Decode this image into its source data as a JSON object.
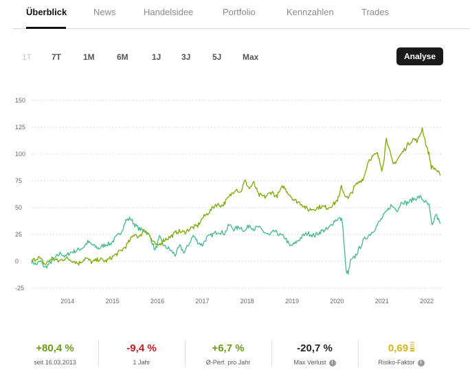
{
  "tabs": [
    {
      "label": "Überblick",
      "active": true
    },
    {
      "label": "News"
    },
    {
      "label": "Handelsidee"
    },
    {
      "label": "Portfolio"
    },
    {
      "label": "Kennzahlen"
    },
    {
      "label": "Trades"
    }
  ],
  "ranges": [
    {
      "label": "1T",
      "disabled": true
    },
    {
      "label": "7T"
    },
    {
      "label": "1M"
    },
    {
      "label": "6M"
    },
    {
      "label": "1J"
    },
    {
      "label": "3J"
    },
    {
      "label": "5J"
    },
    {
      "label": "Max"
    }
  ],
  "analyse_label": "Analyse",
  "colors": {
    "series_primary": "#7aa800",
    "series_secondary": "#3fb886",
    "positive": "#6a9a16",
    "negative": "#c41a1a",
    "neutral": "#222222",
    "risk": "#d9b418"
  },
  "chart_data": {
    "type": "line",
    "ylim": [
      -25,
      150
    ],
    "y_ticks": [
      "150",
      "125",
      "100",
      "75",
      "50",
      "25",
      "0",
      "-25"
    ],
    "x_ticks": [
      "2014",
      "2015",
      "2016",
      "2017",
      "2018",
      "2019",
      "2020",
      "2021",
      "2022"
    ],
    "grid": true,
    "series": [
      {
        "color": "#7aa800",
        "points": [
          [
            2013.2,
            0
          ],
          [
            2013.35,
            4
          ],
          [
            2013.5,
            -3
          ],
          [
            2013.65,
            3
          ],
          [
            2013.8,
            0
          ],
          [
            2013.95,
            3
          ],
          [
            2014.1,
            1
          ],
          [
            2014.25,
            -2
          ],
          [
            2014.4,
            3
          ],
          [
            2014.55,
            -1
          ],
          [
            2014.7,
            2
          ],
          [
            2014.85,
            0
          ],
          [
            2015.0,
            4
          ],
          [
            2015.1,
            7
          ],
          [
            2015.2,
            10
          ],
          [
            2015.3,
            14
          ],
          [
            2015.4,
            20
          ],
          [
            2015.5,
            26
          ],
          [
            2015.6,
            22
          ],
          [
            2015.7,
            30
          ],
          [
            2015.8,
            26
          ],
          [
            2015.9,
            18
          ],
          [
            2016.0,
            14
          ],
          [
            2016.15,
            20
          ],
          [
            2016.3,
            23
          ],
          [
            2016.45,
            28
          ],
          [
            2016.6,
            27
          ],
          [
            2016.75,
            31
          ],
          [
            2016.9,
            33
          ],
          [
            2017.0,
            40
          ],
          [
            2017.1,
            44
          ],
          [
            2017.2,
            48
          ],
          [
            2017.3,
            53
          ],
          [
            2017.45,
            52
          ],
          [
            2017.6,
            60
          ],
          [
            2017.75,
            68
          ],
          [
            2017.85,
            64
          ],
          [
            2017.95,
            75
          ],
          [
            2018.05,
            68
          ],
          [
            2018.15,
            73
          ],
          [
            2018.25,
            62
          ],
          [
            2018.4,
            60
          ],
          [
            2018.55,
            65
          ],
          [
            2018.65,
            60
          ],
          [
            2018.8,
            70
          ],
          [
            2018.95,
            62
          ],
          [
            2019.05,
            57
          ],
          [
            2019.2,
            54
          ],
          [
            2019.35,
            48
          ],
          [
            2019.5,
            49
          ],
          [
            2019.65,
            51
          ],
          [
            2019.8,
            50
          ],
          [
            2019.95,
            54
          ],
          [
            2020.05,
            60
          ],
          [
            2020.1,
            70
          ],
          [
            2020.15,
            64
          ],
          [
            2020.25,
            58
          ],
          [
            2020.4,
            70
          ],
          [
            2020.5,
            74
          ],
          [
            2020.6,
            78
          ],
          [
            2020.7,
            94
          ],
          [
            2020.8,
            98
          ],
          [
            2020.9,
            100
          ],
          [
            2021.0,
            86
          ],
          [
            2021.05,
            96
          ],
          [
            2021.1,
            116
          ],
          [
            2021.15,
            106
          ],
          [
            2021.25,
            90
          ],
          [
            2021.4,
            98
          ],
          [
            2021.5,
            104
          ],
          [
            2021.6,
            110
          ],
          [
            2021.7,
            114
          ],
          [
            2021.8,
            112
          ],
          [
            2021.9,
            124
          ],
          [
            2022.0,
            106
          ],
          [
            2022.05,
            100
          ],
          [
            2022.1,
            88
          ],
          [
            2022.2,
            86
          ],
          [
            2022.3,
            80
          ]
        ]
      },
      {
        "color": "#3fb886",
        "points": [
          [
            2013.2,
            0
          ],
          [
            2013.3,
            -3
          ],
          [
            2013.4,
            0
          ],
          [
            2013.5,
            -6
          ],
          [
            2013.65,
            0
          ],
          [
            2013.75,
            4
          ],
          [
            2013.85,
            8
          ],
          [
            2013.95,
            4
          ],
          [
            2014.05,
            8
          ],
          [
            2014.2,
            10
          ],
          [
            2014.35,
            13
          ],
          [
            2014.45,
            18
          ],
          [
            2014.6,
            14
          ],
          [
            2014.7,
            12
          ],
          [
            2014.85,
            16
          ],
          [
            2014.95,
            16
          ],
          [
            2015.1,
            23
          ],
          [
            2015.2,
            28
          ],
          [
            2015.3,
            38
          ],
          [
            2015.4,
            40
          ],
          [
            2015.5,
            34
          ],
          [
            2015.6,
            30
          ],
          [
            2015.75,
            28
          ],
          [
            2015.85,
            22
          ],
          [
            2015.95,
            10
          ],
          [
            2016.05,
            22
          ],
          [
            2016.15,
            14
          ],
          [
            2016.25,
            12
          ],
          [
            2016.4,
            6
          ],
          [
            2016.5,
            14
          ],
          [
            2016.6,
            8
          ],
          [
            2016.7,
            16
          ],
          [
            2016.8,
            24
          ],
          [
            2016.9,
            18
          ],
          [
            2017.0,
            15
          ],
          [
            2017.1,
            22
          ],
          [
            2017.2,
            24
          ],
          [
            2017.35,
            28
          ],
          [
            2017.5,
            26
          ],
          [
            2017.6,
            34
          ],
          [
            2017.7,
            30
          ],
          [
            2017.85,
            32
          ],
          [
            2017.95,
            28
          ],
          [
            2018.05,
            34
          ],
          [
            2018.15,
            30
          ],
          [
            2018.25,
            32
          ],
          [
            2018.35,
            28
          ],
          [
            2018.5,
            24
          ],
          [
            2018.6,
            28
          ],
          [
            2018.75,
            24
          ],
          [
            2018.85,
            22
          ],
          [
            2018.95,
            14
          ],
          [
            2019.05,
            16
          ],
          [
            2019.15,
            20
          ],
          [
            2019.25,
            24
          ],
          [
            2019.35,
            26
          ],
          [
            2019.5,
            24
          ],
          [
            2019.65,
            28
          ],
          [
            2019.8,
            30
          ],
          [
            2019.95,
            38
          ],
          [
            2020.05,
            40
          ],
          [
            2020.12,
            38
          ],
          [
            2020.15,
            20
          ],
          [
            2020.2,
            -8
          ],
          [
            2020.25,
            -12
          ],
          [
            2020.3,
            0
          ],
          [
            2020.4,
            4
          ],
          [
            2020.5,
            12
          ],
          [
            2020.6,
            20
          ],
          [
            2020.7,
            24
          ],
          [
            2020.8,
            28
          ],
          [
            2020.9,
            34
          ],
          [
            2021.0,
            40
          ],
          [
            2021.1,
            46
          ],
          [
            2021.2,
            52
          ],
          [
            2021.35,
            48
          ],
          [
            2021.45,
            56
          ],
          [
            2021.55,
            54
          ],
          [
            2021.7,
            58
          ],
          [
            2021.85,
            60
          ],
          [
            2021.95,
            56
          ],
          [
            2022.05,
            52
          ],
          [
            2022.12,
            32
          ],
          [
            2022.2,
            44
          ],
          [
            2022.3,
            35
          ]
        ]
      }
    ]
  },
  "stats": [
    {
      "value": "+80,4 %",
      "label": "seit 16.03.2013",
      "tone": "positive"
    },
    {
      "value": "-9,4 %",
      "label": "1 Jahr",
      "tone": "negative"
    },
    {
      "value": "+6,7 %",
      "label": "Ø-Perf. pro Jahr",
      "tone": "positive"
    },
    {
      "value": "-20,7 %",
      "label": "Max Verlust",
      "tone": "neutral",
      "info": true
    },
    {
      "value": "0,69",
      "label": "Risiko-Faktor",
      "tone": "risk",
      "info": true
    }
  ],
  "info_glyph": "i"
}
